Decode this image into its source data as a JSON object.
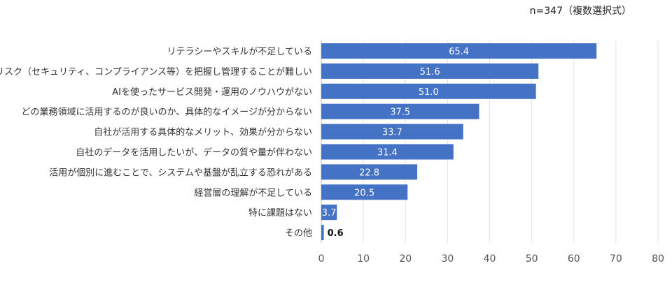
{
  "note": "n=347（複数選択式）",
  "chart_data": {
    "type": "bar",
    "orientation": "horizontal",
    "categories": [
      "リテラシーやスキルが不足している",
      "リスク（セキュリティ、コンプライアンス等）を把握し管理することが難しい",
      "AIを使ったサービス開発・運用のノウハウがない",
      "どの業務領域に活用するのが良いのか、具体的なイメージが分からない",
      "自社が活用する具体的なメリット、効果が分からない",
      "自社のデータを活用したいが、データの質や量が伴わない",
      "活用が個別に進むことで、システムや基盤が乱立する恐れがある",
      "経営層の理解が不足している",
      "特に課題はない",
      "その他"
    ],
    "values": [
      65.4,
      51.6,
      51.0,
      37.5,
      33.7,
      31.4,
      22.8,
      20.5,
      3.7,
      0.6
    ],
    "value_labels": [
      "65.4",
      "51.6",
      "51.0",
      "37.5",
      "33.7",
      "31.4",
      "22.8",
      "20.5",
      "3.7",
      "0.6"
    ],
    "xlim": [
      0,
      80
    ],
    "xticks": [
      0,
      10,
      20,
      30,
      40,
      50,
      60,
      70,
      80
    ],
    "grid": true,
    "bar_color": "#4472C4",
    "title": "",
    "xlabel": "",
    "ylabel": ""
  }
}
